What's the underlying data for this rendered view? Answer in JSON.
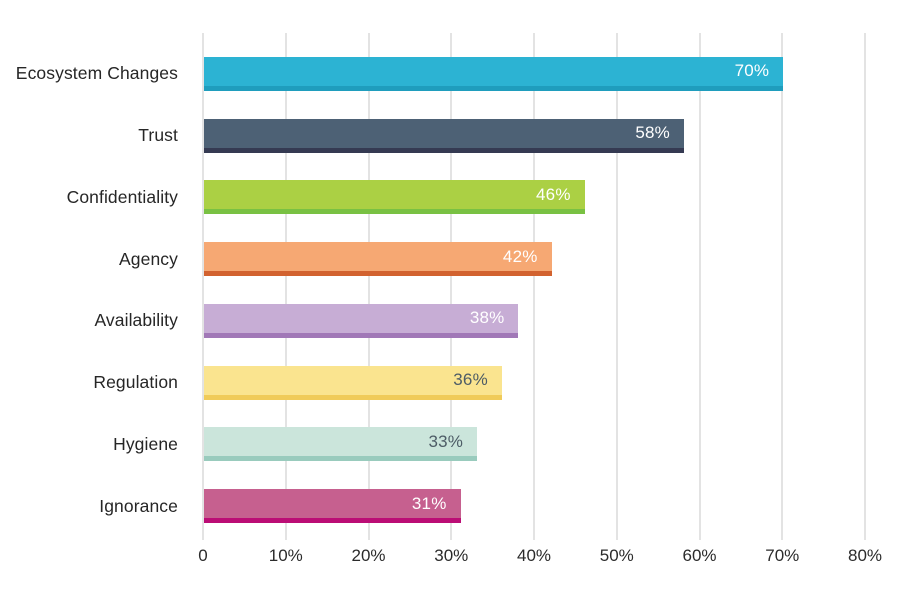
{
  "chart_data": {
    "type": "bar",
    "orientation": "horizontal",
    "title": "",
    "categories": [
      "Ecosystem Changes",
      "Trust",
      "Confidentiality",
      "Agency",
      "Availability",
      "Regulation",
      "Hygiene",
      "Ignorance"
    ],
    "values": [
      70,
      58,
      46,
      42,
      38,
      36,
      33,
      31
    ],
    "value_labels": [
      "70%",
      "58%",
      "46%",
      "42%",
      "38%",
      "36%",
      "33%",
      "31%"
    ],
    "bar_colors": [
      "#2cb3d3",
      "#4d6175",
      "#abd044",
      "#f6a873",
      "#c7add5",
      "#fae48f",
      "#cbe5db",
      "#c6608f"
    ],
    "bar_edge_colors": [
      "#1f9dbd",
      "#353a52",
      "#79c143",
      "#d2622f",
      "#a178b7",
      "#f0cb59",
      "#99cbbd",
      "#bb0d75"
    ],
    "value_label_colors": [
      "#ffffff",
      "#ffffff",
      "#ffffff",
      "#ffffff",
      "#ffffff",
      "#4d5c66",
      "#4d5c66",
      "#ffffff"
    ],
    "xlim": [
      0,
      80
    ],
    "x_tick_labels": [
      "0",
      "10%",
      "20%",
      "30%",
      "40%",
      "50%",
      "60%",
      "70%",
      "80%"
    ],
    "grid": true,
    "legend": false,
    "gridline_color": "#e3e3e3",
    "axis_text_color": "#2b2b2b",
    "background_color": "#ffffff"
  }
}
